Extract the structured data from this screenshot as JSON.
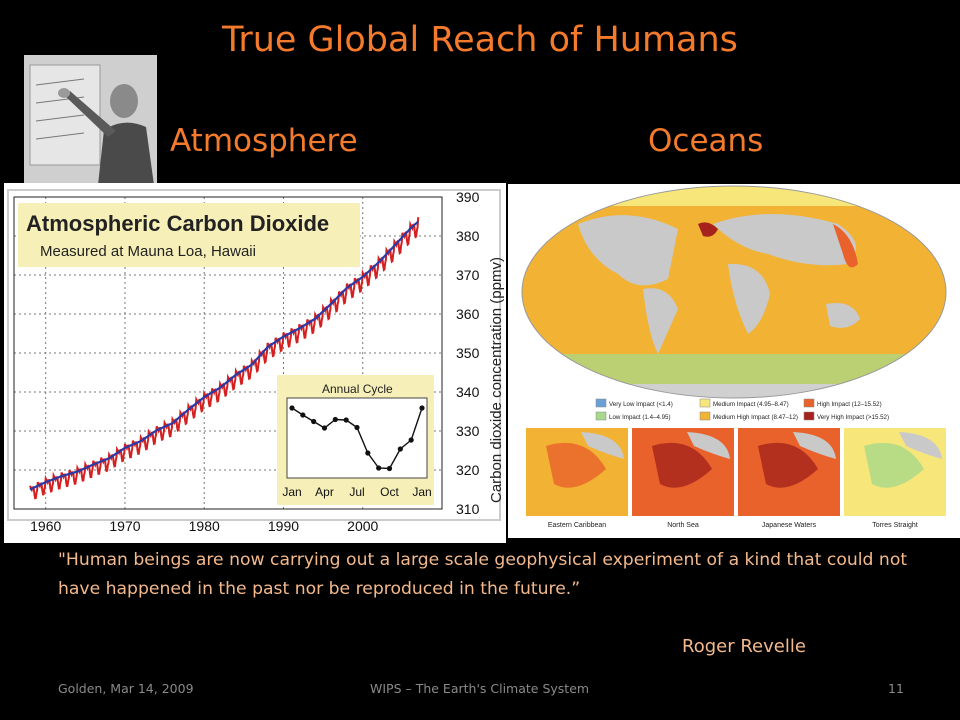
{
  "slide": {
    "title": "True Global Reach of Humans",
    "atmosphere_label": "Atmosphere",
    "oceans_label": "Oceans",
    "quote": "\"Human beings are now carrying out a large scale geophysical experiment of a kind that could not have happened in the past nor be reproduced in the future.”",
    "author": "Roger Revelle",
    "footer_left": "Golden, Mar 14, 2009",
    "footer_center": "WIPS – The Earth's Climate System",
    "page_number": "11"
  },
  "map": {
    "legend": [
      {
        "label": "Very Low Impact (<1.4)",
        "color": "#6a9fd8"
      },
      {
        "label": "Medium Impact (4.95–8.47)",
        "color": "#f7e67a"
      },
      {
        "label": "High Impact (12–15.52)",
        "color": "#e9612b"
      },
      {
        "label": "Low Impact (1.4–4.95)",
        "color": "#a8d98a"
      },
      {
        "label": "Medium High Impact (8.47–12)",
        "color": "#f2b233"
      },
      {
        "label": "Very High Impact (>15.52)",
        "color": "#a5231c"
      }
    ],
    "insets": [
      "Eastern Caribbean",
      "North Sea",
      "Japanese Waters",
      "Torres Straight"
    ]
  },
  "colors": {
    "title": "#f47a2c",
    "text": "#f3b98c",
    "seasonal_line": "#d42020",
    "trend_line": "#2a3aa8"
  },
  "chart_data": [
    {
      "type": "line",
      "title": "Atmospheric Carbon Dioxide",
      "subtitle": "Measured at Mauna Loa, Hawaii",
      "xlabel": "",
      "ylabel": "Carbon dioxide concentration (ppmv)",
      "xlim": [
        1956,
        2010
      ],
      "ylim": [
        310,
        390
      ],
      "xticks": [
        1960,
        1970,
        1980,
        1990,
        2000
      ],
      "yticks": [
        310,
        320,
        330,
        340,
        350,
        360,
        370,
        380,
        390
      ],
      "grid": true,
      "series": [
        {
          "name": "",
          "style": "seasonal",
          "x": [
            1958,
            1960,
            1962,
            1964,
            1966,
            1968,
            1970,
            1972,
            1974,
            1976,
            1978,
            1980,
            1982,
            1984,
            1986,
            1988,
            1990,
            1992,
            1994,
            1996,
            1998,
            2000,
            2002,
            2004,
            2006,
            2007
          ],
          "y": [
            315,
            316.9,
            318.4,
            319.6,
            321.4,
            323,
            325.7,
            327.4,
            330.2,
            332,
            335.5,
            338.7,
            341.1,
            344.4,
            347,
            351.5,
            354.2,
            356.3,
            358.8,
            362.6,
            366.7,
            369.5,
            373.2,
            377.5,
            381.9,
            383.7
          ]
        },
        {
          "name": "",
          "style": "trend",
          "x": [
            1958,
            1960,
            1962,
            1964,
            1966,
            1968,
            1970,
            1972,
            1974,
            1976,
            1978,
            1980,
            1982,
            1984,
            1986,
            1988,
            1990,
            1992,
            1994,
            1996,
            1998,
            2000,
            2002,
            2004,
            2006,
            2007
          ],
          "y": [
            315,
            316.9,
            318.4,
            319.6,
            321.4,
            323,
            325.7,
            327.4,
            330.2,
            332,
            335.5,
            338.7,
            341.1,
            344.4,
            347,
            351.5,
            354.2,
            356.3,
            358.8,
            362.6,
            366.7,
            369.5,
            373.2,
            377.5,
            381.9,
            383.7
          ]
        }
      ]
    },
    {
      "type": "line",
      "title": "Annual Cycle",
      "xticks": [
        "Jan",
        "Apr",
        "Jul",
        "Oct",
        "Jan"
      ],
      "series": [
        {
          "name": "",
          "values": [
            0.3,
            0.16,
            0.03,
            -0.1,
            0.07,
            0.06,
            -0.09,
            -0.6,
            -0.9,
            -0.91,
            -0.52,
            -0.34,
            0.3
          ]
        }
      ]
    }
  ]
}
